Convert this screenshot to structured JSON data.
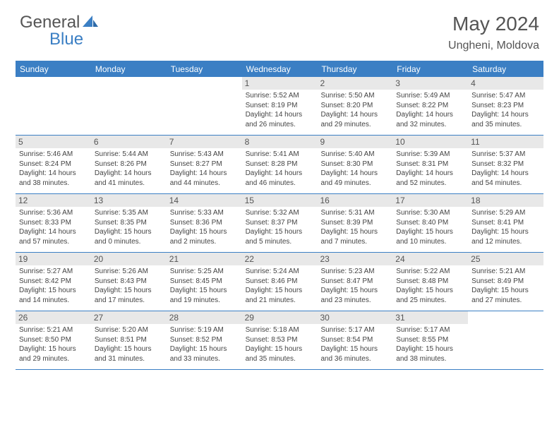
{
  "logo": {
    "text1": "General",
    "text2": "Blue"
  },
  "title": "May 2024",
  "location": "Ungheni, Moldova",
  "dayNames": [
    "Sunday",
    "Monday",
    "Tuesday",
    "Wednesday",
    "Thursday",
    "Friday",
    "Saturday"
  ],
  "colors": {
    "accent": "#3b7fc4",
    "headerText": "#ffffff",
    "dayNumBg": "#e8e8e8",
    "text": "#444444",
    "logoGray": "#555555"
  },
  "weeks": [
    [
      {
        "empty": true
      },
      {
        "empty": true
      },
      {
        "empty": true
      },
      {
        "num": "1",
        "sunrise": "Sunrise: 5:52 AM",
        "sunset": "Sunset: 8:19 PM",
        "daylight": "Daylight: 14 hours and 26 minutes."
      },
      {
        "num": "2",
        "sunrise": "Sunrise: 5:50 AM",
        "sunset": "Sunset: 8:20 PM",
        "daylight": "Daylight: 14 hours and 29 minutes."
      },
      {
        "num": "3",
        "sunrise": "Sunrise: 5:49 AM",
        "sunset": "Sunset: 8:22 PM",
        "daylight": "Daylight: 14 hours and 32 minutes."
      },
      {
        "num": "4",
        "sunrise": "Sunrise: 5:47 AM",
        "sunset": "Sunset: 8:23 PM",
        "daylight": "Daylight: 14 hours and 35 minutes."
      }
    ],
    [
      {
        "num": "5",
        "sunrise": "Sunrise: 5:46 AM",
        "sunset": "Sunset: 8:24 PM",
        "daylight": "Daylight: 14 hours and 38 minutes."
      },
      {
        "num": "6",
        "sunrise": "Sunrise: 5:44 AM",
        "sunset": "Sunset: 8:26 PM",
        "daylight": "Daylight: 14 hours and 41 minutes."
      },
      {
        "num": "7",
        "sunrise": "Sunrise: 5:43 AM",
        "sunset": "Sunset: 8:27 PM",
        "daylight": "Daylight: 14 hours and 44 minutes."
      },
      {
        "num": "8",
        "sunrise": "Sunrise: 5:41 AM",
        "sunset": "Sunset: 8:28 PM",
        "daylight": "Daylight: 14 hours and 46 minutes."
      },
      {
        "num": "9",
        "sunrise": "Sunrise: 5:40 AM",
        "sunset": "Sunset: 8:30 PM",
        "daylight": "Daylight: 14 hours and 49 minutes."
      },
      {
        "num": "10",
        "sunrise": "Sunrise: 5:39 AM",
        "sunset": "Sunset: 8:31 PM",
        "daylight": "Daylight: 14 hours and 52 minutes."
      },
      {
        "num": "11",
        "sunrise": "Sunrise: 5:37 AM",
        "sunset": "Sunset: 8:32 PM",
        "daylight": "Daylight: 14 hours and 54 minutes."
      }
    ],
    [
      {
        "num": "12",
        "sunrise": "Sunrise: 5:36 AM",
        "sunset": "Sunset: 8:33 PM",
        "daylight": "Daylight: 14 hours and 57 minutes."
      },
      {
        "num": "13",
        "sunrise": "Sunrise: 5:35 AM",
        "sunset": "Sunset: 8:35 PM",
        "daylight": "Daylight: 15 hours and 0 minutes."
      },
      {
        "num": "14",
        "sunrise": "Sunrise: 5:33 AM",
        "sunset": "Sunset: 8:36 PM",
        "daylight": "Daylight: 15 hours and 2 minutes."
      },
      {
        "num": "15",
        "sunrise": "Sunrise: 5:32 AM",
        "sunset": "Sunset: 8:37 PM",
        "daylight": "Daylight: 15 hours and 5 minutes."
      },
      {
        "num": "16",
        "sunrise": "Sunrise: 5:31 AM",
        "sunset": "Sunset: 8:39 PM",
        "daylight": "Daylight: 15 hours and 7 minutes."
      },
      {
        "num": "17",
        "sunrise": "Sunrise: 5:30 AM",
        "sunset": "Sunset: 8:40 PM",
        "daylight": "Daylight: 15 hours and 10 minutes."
      },
      {
        "num": "18",
        "sunrise": "Sunrise: 5:29 AM",
        "sunset": "Sunset: 8:41 PM",
        "daylight": "Daylight: 15 hours and 12 minutes."
      }
    ],
    [
      {
        "num": "19",
        "sunrise": "Sunrise: 5:27 AM",
        "sunset": "Sunset: 8:42 PM",
        "daylight": "Daylight: 15 hours and 14 minutes."
      },
      {
        "num": "20",
        "sunrise": "Sunrise: 5:26 AM",
        "sunset": "Sunset: 8:43 PM",
        "daylight": "Daylight: 15 hours and 17 minutes."
      },
      {
        "num": "21",
        "sunrise": "Sunrise: 5:25 AM",
        "sunset": "Sunset: 8:45 PM",
        "daylight": "Daylight: 15 hours and 19 minutes."
      },
      {
        "num": "22",
        "sunrise": "Sunrise: 5:24 AM",
        "sunset": "Sunset: 8:46 PM",
        "daylight": "Daylight: 15 hours and 21 minutes."
      },
      {
        "num": "23",
        "sunrise": "Sunrise: 5:23 AM",
        "sunset": "Sunset: 8:47 PM",
        "daylight": "Daylight: 15 hours and 23 minutes."
      },
      {
        "num": "24",
        "sunrise": "Sunrise: 5:22 AM",
        "sunset": "Sunset: 8:48 PM",
        "daylight": "Daylight: 15 hours and 25 minutes."
      },
      {
        "num": "25",
        "sunrise": "Sunrise: 5:21 AM",
        "sunset": "Sunset: 8:49 PM",
        "daylight": "Daylight: 15 hours and 27 minutes."
      }
    ],
    [
      {
        "num": "26",
        "sunrise": "Sunrise: 5:21 AM",
        "sunset": "Sunset: 8:50 PM",
        "daylight": "Daylight: 15 hours and 29 minutes."
      },
      {
        "num": "27",
        "sunrise": "Sunrise: 5:20 AM",
        "sunset": "Sunset: 8:51 PM",
        "daylight": "Daylight: 15 hours and 31 minutes."
      },
      {
        "num": "28",
        "sunrise": "Sunrise: 5:19 AM",
        "sunset": "Sunset: 8:52 PM",
        "daylight": "Daylight: 15 hours and 33 minutes."
      },
      {
        "num": "29",
        "sunrise": "Sunrise: 5:18 AM",
        "sunset": "Sunset: 8:53 PM",
        "daylight": "Daylight: 15 hours and 35 minutes."
      },
      {
        "num": "30",
        "sunrise": "Sunrise: 5:17 AM",
        "sunset": "Sunset: 8:54 PM",
        "daylight": "Daylight: 15 hours and 36 minutes."
      },
      {
        "num": "31",
        "sunrise": "Sunrise: 5:17 AM",
        "sunset": "Sunset: 8:55 PM",
        "daylight": "Daylight: 15 hours and 38 minutes."
      },
      {
        "empty": true
      }
    ]
  ]
}
